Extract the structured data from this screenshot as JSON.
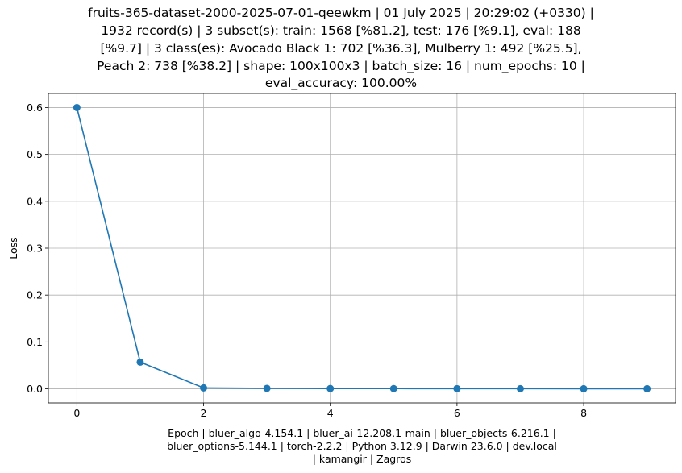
{
  "chart_data": {
    "type": "line",
    "title_lines": [
      "fruits-365-dataset-2000-2025-07-01-qeewkm | 01 July 2025 | 20:29:02 (+0330) |",
      "1932 record(s) | 3 subset(s): train: 1568 [%81.2], test: 176 [%9.1], eval: 188",
      "[%9.7] | 3 class(es): Avocado Black 1: 702 [%36.3], Mulberry 1: 492 [%25.5],",
      "Peach 2: 738 [%38.2] | shape: 100x100x3 | batch_size: 16 | num_epochs: 10 |",
      "eval_accuracy: 100.00%"
    ],
    "xlabel_lines": [
      "Epoch | bluer_algo-4.154.1 | bluer_ai-12.208.1-main | bluer_objects-6.216.1 |",
      "bluer_options-5.144.1 | torch-2.2.2 | Python 3.12.9 | Darwin 23.6.0 | dev.local",
      "| kamangir | Zagros"
    ],
    "ylabel": "Loss",
    "x": [
      0,
      1,
      2,
      3,
      4,
      5,
      6,
      7,
      8,
      9
    ],
    "y": [
      0.6,
      0.057,
      0.002,
      0.001,
      0.0007,
      0.0005,
      0.0004,
      0.0003,
      0.0002,
      0.0002
    ],
    "xlim": [
      -0.45,
      9.45
    ],
    "ylim": [
      -0.03,
      0.63
    ],
    "xticks": [
      0,
      2,
      4,
      6,
      8
    ],
    "xtick_labels": [
      "0",
      "2",
      "4",
      "6",
      "8"
    ],
    "yticks": [
      0.0,
      0.1,
      0.2,
      0.3,
      0.4,
      0.5,
      0.6
    ],
    "ytick_labels": [
      "0.0",
      "0.1",
      "0.2",
      "0.3",
      "0.4",
      "0.5",
      "0.6"
    ],
    "grid": true,
    "marker": "circle",
    "line_color": "#1f77b4",
    "grid_color": "#b0b0b0"
  }
}
